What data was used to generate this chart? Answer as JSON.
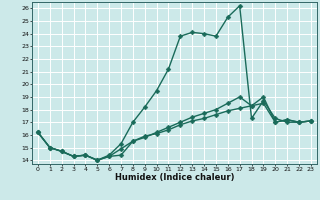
{
  "xlabel": "Humidex (Indice chaleur)",
  "ylabel": "",
  "bg_color": "#cce9e9",
  "line_color": "#1a6b5a",
  "grid_color": "#ffffff",
  "xlim": [
    -0.5,
    23.5
  ],
  "ylim": [
    13.7,
    26.5
  ],
  "yticks": [
    14,
    15,
    16,
    17,
    18,
    19,
    20,
    21,
    22,
    23,
    24,
    25,
    26
  ],
  "xticks": [
    0,
    1,
    2,
    3,
    4,
    5,
    6,
    7,
    8,
    9,
    10,
    11,
    12,
    13,
    14,
    15,
    16,
    17,
    18,
    19,
    20,
    21,
    22,
    23
  ],
  "line1_x": [
    0,
    1,
    2,
    3,
    4,
    5,
    6,
    7,
    8,
    9,
    10,
    11,
    12,
    13,
    14,
    15,
    16,
    17,
    18,
    19,
    20,
    21,
    22,
    23
  ],
  "line1_y": [
    16.2,
    15.0,
    14.7,
    14.3,
    14.4,
    14.0,
    14.3,
    14.4,
    15.5,
    15.9,
    16.1,
    16.4,
    16.8,
    17.1,
    17.3,
    17.6,
    17.9,
    18.1,
    18.3,
    18.5,
    17.0,
    17.2,
    17.0,
    17.1
  ],
  "line2_x": [
    0,
    1,
    2,
    3,
    4,
    5,
    6,
    7,
    8,
    9,
    10,
    11,
    12,
    13,
    14,
    15,
    16,
    17,
    18,
    19,
    20,
    21,
    22,
    23
  ],
  "line2_y": [
    16.2,
    15.0,
    14.7,
    14.3,
    14.4,
    14.0,
    14.4,
    15.3,
    17.0,
    18.2,
    19.5,
    21.2,
    23.8,
    24.1,
    24.0,
    23.8,
    25.3,
    26.2,
    17.3,
    18.7,
    17.3,
    17.0,
    17.0,
    17.1
  ],
  "line3_x": [
    0,
    1,
    2,
    3,
    4,
    5,
    6,
    7,
    8,
    9,
    10,
    11,
    12,
    13,
    14,
    15,
    16,
    17,
    18,
    19,
    20,
    21,
    22,
    23
  ],
  "line3_y": [
    16.2,
    15.0,
    14.7,
    14.3,
    14.4,
    14.0,
    14.3,
    14.9,
    15.5,
    15.8,
    16.2,
    16.6,
    17.0,
    17.4,
    17.7,
    18.0,
    18.5,
    19.0,
    18.3,
    19.0,
    17.0,
    17.2,
    17.0,
    17.1
  ],
  "marker_size": 2.5,
  "line_width": 1.0
}
